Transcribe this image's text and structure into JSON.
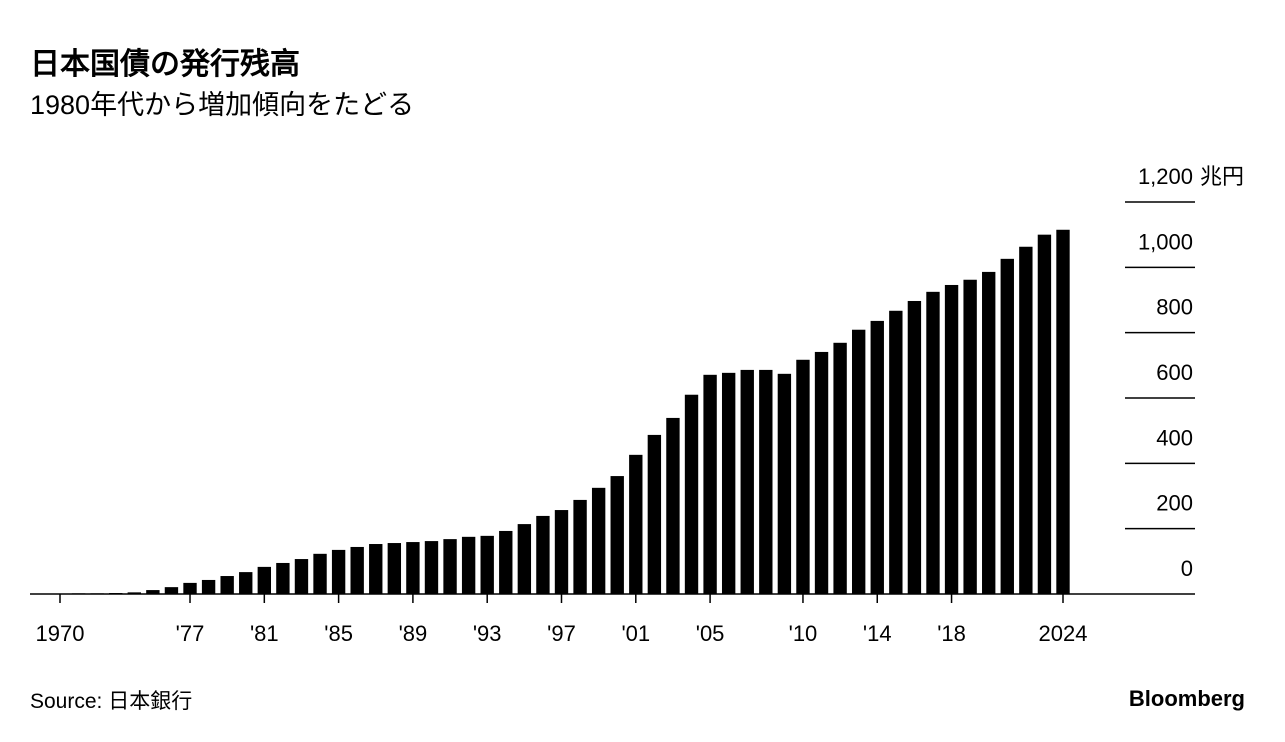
{
  "chart_data": {
    "type": "bar",
    "title": "日本国債の発行残高",
    "subtitle": "1980年代から増加傾向をたどる",
    "y_unit": "兆円",
    "source": "Source: 日本銀行",
    "brand": "Bloomberg",
    "color": "#000000",
    "x": [
      1970,
      1971,
      1972,
      1973,
      1974,
      1975,
      1976,
      1977,
      1978,
      1979,
      1980,
      1981,
      1982,
      1983,
      1984,
      1985,
      1986,
      1987,
      1988,
      1989,
      1990,
      1991,
      1992,
      1993,
      1994,
      1995,
      1996,
      1997,
      1998,
      1999,
      2000,
      2001,
      2002,
      2003,
      2004,
      2005,
      2006,
      2007,
      2008,
      2009,
      2010,
      2011,
      2012,
      2013,
      2014,
      2015,
      2016,
      2017,
      2018,
      2019,
      2020,
      2021,
      2022,
      2023,
      2024
    ],
    "values": [
      1,
      2,
      2,
      3,
      5,
      12,
      21,
      34,
      43,
      55,
      67,
      83,
      95,
      107,
      123,
      135,
      144,
      153,
      156,
      159,
      162,
      168,
      175,
      178,
      193,
      214,
      239,
      257,
      288,
      325,
      361,
      426,
      487,
      539,
      610,
      671,
      677,
      686,
      686,
      674,
      717,
      741,
      769,
      809,
      836,
      867,
      897,
      925,
      946,
      962,
      986,
      1026,
      1063,
      1100,
      1115
    ],
    "xlim": [
      1970,
      2024
    ],
    "xticks": [
      1970,
      {
        "value": 1977,
        "label": "'77"
      },
      {
        "value": 1981,
        "label": "'81"
      },
      {
        "value": 1985,
        "label": "'85"
      },
      {
        "value": 1989,
        "label": "'89"
      },
      {
        "value": 1993,
        "label": "'93"
      },
      {
        "value": 1997,
        "label": "'97"
      },
      {
        "value": 2001,
        "label": "'01"
      },
      {
        "value": 2005,
        "label": "'05"
      },
      {
        "value": 2010,
        "label": "'10"
      },
      {
        "value": 2014,
        "label": "'14"
      },
      {
        "value": 2018,
        "label": "'18"
      },
      2024
    ],
    "ylim": [
      0,
      1200
    ],
    "yticks": [
      0,
      200,
      400,
      600,
      800,
      {
        "value": 1000,
        "label": "1,000"
      },
      {
        "value": 1200,
        "label": "1,200"
      }
    ],
    "grid": true
  }
}
